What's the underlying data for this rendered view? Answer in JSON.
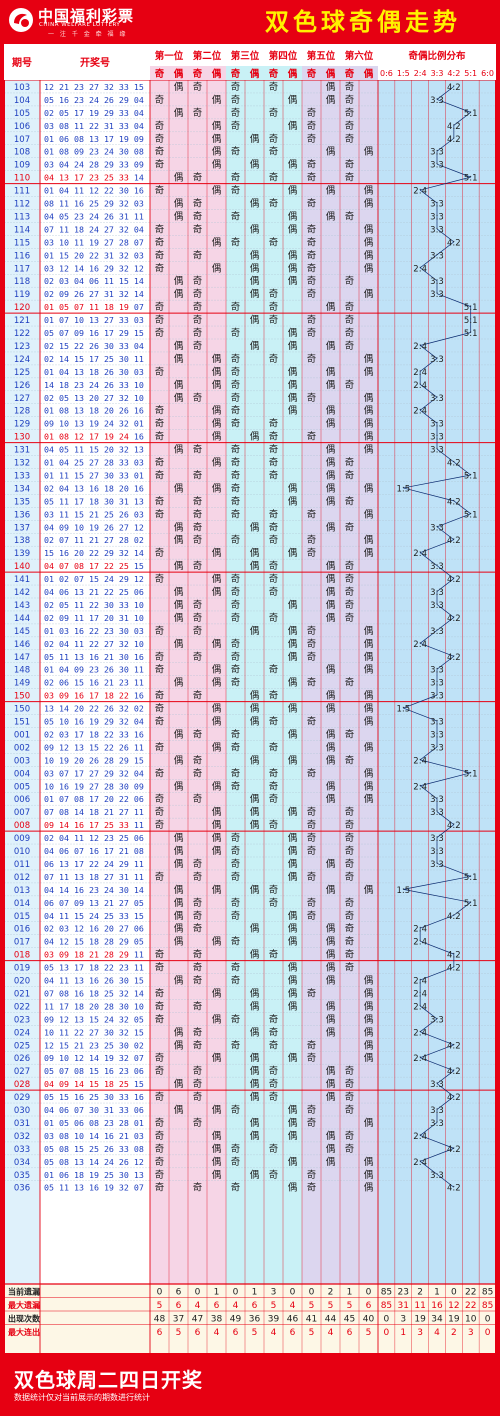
{
  "header": {
    "logo_cn": "中国福利彩票",
    "logo_en": "CHINA WELFARE LOTTERY",
    "logo_slogan": "一 注 千 金 牵 福 缘",
    "title": "双色球奇偶走势"
  },
  "footer": {
    "title": "双色球周二四日开奖",
    "note": "数据统计仅对当前展示的期数进行统计"
  },
  "colors": {
    "brand_red": "#e60012",
    "title_yellow": "#fff200",
    "pos_pink": "#f6d5e6",
    "pos_cyan": "#c9f1f6",
    "pos_lavender": "#dcd6ef",
    "dist_blue": "#bfe2f7",
    "number_blue": "#1f3fbf",
    "header_red": "#e60012"
  },
  "chart_data": {
    "type": "table",
    "headers": {
      "period": "期号",
      "draw": "开奖号",
      "positions": [
        "第一位",
        "第二位",
        "第三位",
        "第四位",
        "第五位",
        "第六位"
      ],
      "odd": "奇",
      "even": "偶",
      "ratio_group": "奇偶比例分布",
      "ratios": [
        "0:6",
        "1:5",
        "2:4",
        "3:3",
        "4:2",
        "5:1",
        "6:0"
      ]
    },
    "rows": [
      {
        "p": "103",
        "r": "12 21 23 27 32 33",
        "b": "15"
      },
      {
        "p": "104",
        "r": "05 16 23 24 26 29",
        "b": "04"
      },
      {
        "p": "105",
        "r": "02 05 17 19 29 33",
        "b": "04"
      },
      {
        "p": "106",
        "r": "03 08 11 22 31 33",
        "b": "04"
      },
      {
        "p": "107",
        "r": "01 06 08 13 17 19",
        "b": "09"
      },
      {
        "p": "108",
        "r": "01 08 09 23 24 30",
        "b": "08"
      },
      {
        "p": "109",
        "r": "03 04 24 28 29 33",
        "b": "09"
      },
      {
        "p": "110",
        "r": "04 13 17 23 25 33",
        "b": "14"
      },
      {
        "p": "111",
        "r": "01 04 11 12 22 30",
        "b": "16"
      },
      {
        "p": "112",
        "r": "08 11 16 25 29 32",
        "b": "03"
      },
      {
        "p": "113",
        "r": "04 05 23 24 26 31",
        "b": "11"
      },
      {
        "p": "114",
        "r": "07 11 18 24 27 32",
        "b": "04"
      },
      {
        "p": "115",
        "r": "03 10 11 19 27 28",
        "b": "07"
      },
      {
        "p": "116",
        "r": "01 15 20 22 31 32",
        "b": "03"
      },
      {
        "p": "117",
        "r": "03 12 14 16 29 32",
        "b": "12"
      },
      {
        "p": "118",
        "r": "02 03 04 06 11 15",
        "b": "14"
      },
      {
        "p": "119",
        "r": "02 09 26 27 31 32",
        "b": "14"
      },
      {
        "p": "120",
        "r": "01 05 07 11 18 19",
        "b": "07"
      },
      {
        "p": "121",
        "r": "01 07 10 13 27 33",
        "b": "03"
      },
      {
        "p": "122",
        "r": "05 07 09 16 17 29",
        "b": "15"
      },
      {
        "p": "123",
        "r": "02 15 22 26 30 33",
        "b": "04"
      },
      {
        "p": "124",
        "r": "02 14 15 17 25 30",
        "b": "11"
      },
      {
        "p": "125",
        "r": "01 04 13 18 26 30",
        "b": "03"
      },
      {
        "p": "126",
        "r": "14 18 23 24 26 33",
        "b": "10"
      },
      {
        "p": "127",
        "r": "02 05 13 20 27 32",
        "b": "10"
      },
      {
        "p": "128",
        "r": "01 08 13 18 20 26",
        "b": "16"
      },
      {
        "p": "129",
        "r": "09 10 13 19 24 32",
        "b": "01"
      },
      {
        "p": "130",
        "r": "01 08 12 17 19 24",
        "b": "16"
      },
      {
        "p": "131",
        "r": "04 05 11 15 20 32",
        "b": "13"
      },
      {
        "p": "132",
        "r": "01 04 25 27 28 33",
        "b": "03"
      },
      {
        "p": "133",
        "r": "01 11 15 27 30 33",
        "b": "01"
      },
      {
        "p": "134",
        "r": "02 04 13 16 18 20",
        "b": "16"
      },
      {
        "p": "135",
        "r": "05 11 17 18 30 31",
        "b": "13"
      },
      {
        "p": "136",
        "r": "03 11 15 21 25 26",
        "b": "03"
      },
      {
        "p": "137",
        "r": "04 09 10 19 26 27",
        "b": "12"
      },
      {
        "p": "138",
        "r": "02 07 11 21 27 28",
        "b": "02"
      },
      {
        "p": "139",
        "r": "15 16 20 22 29 32",
        "b": "14"
      },
      {
        "p": "140",
        "r": "04 07 08 17 22 25",
        "b": "15"
      },
      {
        "p": "141",
        "r": "01 02 07 15 24 29",
        "b": "12"
      },
      {
        "p": "142",
        "r": "04 06 13 21 22 25",
        "b": "06"
      },
      {
        "p": "143",
        "r": "02 05 11 22 30 33",
        "b": "10"
      },
      {
        "p": "144",
        "r": "02 09 11 17 20 31",
        "b": "10"
      },
      {
        "p": "145",
        "r": "01 03 16 22 23 30",
        "b": "03"
      },
      {
        "p": "146",
        "r": "02 04 11 22 27 32",
        "b": "10"
      },
      {
        "p": "147",
        "r": "05 11 13 16 21 30",
        "b": "16"
      },
      {
        "p": "148",
        "r": "01 04 09 23 26 30",
        "b": "11"
      },
      {
        "p": "149",
        "r": "02 06 15 16 21 23",
        "b": "11"
      },
      {
        "p": "150",
        "r": "03 09 16 17 18 22",
        "b": "16"
      },
      {
        "p": "150b",
        "r": "13 14 20 22 26 32",
        "b": "02"
      },
      {
        "p": "151",
        "r": "05 10 16 19 29 32",
        "b": "04"
      },
      {
        "p": "001",
        "r": "02 03 17 18 22 33",
        "b": "16"
      },
      {
        "p": "002",
        "r": "09 12 13 15 22 26",
        "b": "11"
      },
      {
        "p": "003",
        "r": "10 19 20 26 28 29",
        "b": "15"
      },
      {
        "p": "004",
        "r": "03 07 17 27 29 32",
        "b": "04"
      },
      {
        "p": "005",
        "r": "10 16 19 27 28 30",
        "b": "09"
      },
      {
        "p": "006",
        "r": "01 07 08 17 20 22",
        "b": "06"
      },
      {
        "p": "007",
        "r": "07 08 14 18 21 27",
        "b": "11"
      },
      {
        "p": "008",
        "r": "09 14 16 17 25 33",
        "b": "11"
      },
      {
        "p": "009",
        "r": "02 04 11 12 23 25",
        "b": "06"
      },
      {
        "p": "010",
        "r": "04 06 07 16 17 21",
        "b": "08"
      },
      {
        "p": "011",
        "r": "06 13 17 22 24 29",
        "b": "11"
      },
      {
        "p": "012",
        "r": "07 11 13 18 27 31",
        "b": "11"
      },
      {
        "p": "013",
        "r": "04 14 16 23 24 30",
        "b": "14"
      },
      {
        "p": "014",
        "r": "06 07 09 13 21 27",
        "b": "05"
      },
      {
        "p": "015",
        "r": "04 11 15 24 25 33",
        "b": "15"
      },
      {
        "p": "016",
        "r": "02 03 12 16 20 27",
        "b": "06"
      },
      {
        "p": "017",
        "r": "04 12 15 18 28 29",
        "b": "05"
      },
      {
        "p": "018",
        "r": "03 09 18 21 28 29",
        "b": "11"
      },
      {
        "p": "019",
        "r": "05 13 17 18 22 23",
        "b": "11"
      },
      {
        "p": "020",
        "r": "04 11 13 16 26 30",
        "b": "15"
      },
      {
        "p": "021",
        "r": "07 08 16 18 25 32",
        "b": "14"
      },
      {
        "p": "022",
        "r": "11 17 18 20 28 30",
        "b": "10"
      },
      {
        "p": "023",
        "r": "09 12 13 15 24 32",
        "b": "05"
      },
      {
        "p": "024",
        "r": "10 11 22 27 30 32",
        "b": "15"
      },
      {
        "p": "025",
        "r": "12 15 21 23 25 30",
        "b": "02"
      },
      {
        "p": "026",
        "r": "09 10 12 14 19 32",
        "b": "07"
      },
      {
        "p": "027",
        "r": "05 07 08 15 16 23",
        "b": "06"
      },
      {
        "p": "028",
        "r": "04 09 14 15 18 25",
        "b": "15"
      },
      {
        "p": "029",
        "r": "05 15 16 25 30 33",
        "b": "16"
      },
      {
        "p": "030",
        "r": "04 06 07 30 31 33",
        "b": "06"
      },
      {
        "p": "031",
        "r": "01 05 06 08 23 28",
        "b": "01"
      },
      {
        "p": "032",
        "r": "03 08 10 14 16 21",
        "b": "03"
      },
      {
        "p": "033",
        "r": "05 08 15 25 26 33",
        "b": "08"
      },
      {
        "p": "034",
        "r": "05 08 13 14 24 26",
        "b": "12"
      },
      {
        "p": "035",
        "r": "01 06 18 19 25 30",
        "b": "13"
      },
      {
        "p": "036",
        "r": "05 11 13 16 19 32",
        "b": "07"
      }
    ],
    "stats": [
      {
        "label": "当前遗漏",
        "values": [
          "0",
          "6",
          "0",
          "1",
          "0",
          "1",
          "3",
          "0",
          "0",
          "2",
          "1",
          "0",
          "85",
          "23",
          "2",
          "1",
          "0",
          "22",
          "85"
        ]
      },
      {
        "label": "最大遗漏",
        "values": [
          "5",
          "6",
          "4",
          "6",
          "4",
          "6",
          "5",
          "4",
          "5",
          "5",
          "5",
          "6",
          "85",
          "31",
          "11",
          "16",
          "12",
          "22",
          "85"
        ]
      },
      {
        "label": "出现次数",
        "values": [
          "48",
          "37",
          "47",
          "38",
          "49",
          "36",
          "39",
          "46",
          "41",
          "44",
          "45",
          "40",
          "0",
          "3",
          "19",
          "34",
          "19",
          "10",
          "0"
        ]
      },
      {
        "label": "最大连出",
        "values": [
          "6",
          "5",
          "6",
          "4",
          "6",
          "5",
          "4",
          "6",
          "5",
          "4",
          "6",
          "5",
          "0",
          "1",
          "3",
          "4",
          "2",
          "3",
          "0"
        ]
      }
    ]
  }
}
